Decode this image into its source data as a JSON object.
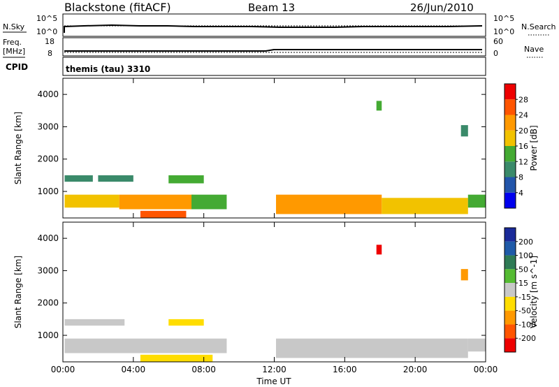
{
  "header": {
    "title": "Blackstone (fitACF)",
    "beam": "Beam 13",
    "date": "26/Jun/2010"
  },
  "nsky": {
    "label": "N.Sky",
    "tick_top": "10^5",
    "tick_bottom": "10^0"
  },
  "nsearch": {
    "label": "N.Search",
    "tick_top": "10^5",
    "tick_bottom": "10^0"
  },
  "freq": {
    "label_line1": "Freq.",
    "label_line2": "[MHz]",
    "tick_top": "18",
    "tick_bottom": "8"
  },
  "nave": {
    "label": "Nave",
    "tick_top": "60",
    "tick_bottom": "0"
  },
  "cpid": {
    "label": "CPID",
    "value": "themis (tau) 3310"
  },
  "colors": {
    "power": [
      "#0000ee",
      "#2255aa",
      "#3a8a6a",
      "#44aa33",
      "#f2c200",
      "#ff9900",
      "#ff5500",
      "#ee0000"
    ],
    "velocity": [
      "#1a2a99",
      "#1f5aa8",
      "#2e7a55",
      "#55bb33",
      "#c8c8c8",
      "#ffdd00",
      "#ff9900",
      "#ff5500",
      "#ee0000"
    ]
  },
  "chart_data": [
    {
      "type": "heatmap",
      "name": "power",
      "xlabel": "",
      "ylabel": "Slant Range [km]",
      "xlim": [
        0,
        24
      ],
      "ylim": [
        180,
        4500
      ],
      "yticks": [
        "1000",
        "2000",
        "3000",
        "4000"
      ],
      "colorbar": {
        "label": "Power [dB]",
        "ticks": [
          "4",
          "8",
          "12",
          "16",
          "20",
          "24",
          "28"
        ],
        "range": [
          0,
          30
        ]
      },
      "regions": [
        {
          "x": [
            0.1,
            3.2
          ],
          "y": [
            500,
            900
          ],
          "level": 18
        },
        {
          "x": [
            3.2,
            7.4
          ],
          "y": [
            450,
            900
          ],
          "level": 22
        },
        {
          "x": [
            0.1,
            1.7
          ],
          "y": [
            1300,
            1500
          ],
          "level": 10
        },
        {
          "x": [
            2.0,
            4.0
          ],
          "y": [
            1300,
            1500
          ],
          "level": 10
        },
        {
          "x": [
            6.0,
            8.0
          ],
          "y": [
            1250,
            1500
          ],
          "level": 12
        },
        {
          "x": [
            7.3,
            9.3
          ],
          "y": [
            450,
            900
          ],
          "level": 14
        },
        {
          "x": [
            4.4,
            7.0
          ],
          "y": [
            180,
            400
          ],
          "level": 26
        },
        {
          "x": [
            12.1,
            18.1
          ],
          "y": [
            300,
            900
          ],
          "level": 21
        },
        {
          "x": [
            18.1,
            23.0
          ],
          "y": [
            300,
            800
          ],
          "level": 18
        },
        {
          "x": [
            23.0,
            24.0
          ],
          "y": [
            500,
            900
          ],
          "level": 14
        },
        {
          "x": [
            17.8,
            18.1
          ],
          "y": [
            3500,
            3800
          ],
          "level": 12
        },
        {
          "x": [
            22.6,
            23.0
          ],
          "y": [
            2700,
            3050
          ],
          "level": 8
        }
      ]
    },
    {
      "type": "heatmap",
      "name": "velocity",
      "xlabel": "Time UT",
      "ylabel": "Slant Range [km]",
      "xlim": [
        0,
        24
      ],
      "ylim": [
        180,
        4500
      ],
      "xticks": [
        "00:00",
        "04:00",
        "08:00",
        "12:00",
        "16:00",
        "20:00",
        "00:00"
      ],
      "yticks": [
        "1000",
        "2000",
        "3000",
        "4000"
      ],
      "colorbar": {
        "label": "Velocity [m s^-1]",
        "ticks": [
          "200",
          "100",
          "50",
          "15",
          "-15",
          "-50",
          "-100",
          "-200"
        ],
        "range": [
          -250,
          250
        ]
      },
      "regions": [
        {
          "x": [
            0.1,
            9.3
          ],
          "y": [
            450,
            900
          ],
          "level": 0
        },
        {
          "x": [
            0.1,
            3.5
          ],
          "y": [
            1300,
            1500
          ],
          "level": 0
        },
        {
          "x": [
            6.0,
            8.0
          ],
          "y": [
            1300,
            1500
          ],
          "level": -60
        },
        {
          "x": [
            4.4,
            8.5
          ],
          "y": [
            180,
            400
          ],
          "level": -60
        },
        {
          "x": [
            12.1,
            23.0
          ],
          "y": [
            300,
            900
          ],
          "level": 0
        },
        {
          "x": [
            23.0,
            24.0
          ],
          "y": [
            500,
            900
          ],
          "level": 0
        },
        {
          "x": [
            17.8,
            18.1
          ],
          "y": [
            3500,
            3800
          ],
          "level": -200
        },
        {
          "x": [
            22.6,
            23.0
          ],
          "y": [
            2700,
            3050
          ],
          "level": -120
        }
      ]
    }
  ]
}
